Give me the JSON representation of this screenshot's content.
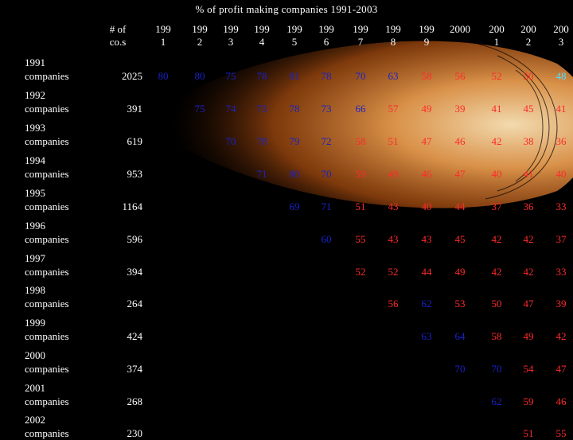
{
  "title": "% of profit making companies 1991-2003",
  "header": {
    "count_col": [
      "# of",
      "co.s"
    ],
    "years": [
      [
        "199",
        "1"
      ],
      [
        "199",
        "2"
      ],
      [
        "199",
        "3"
      ],
      [
        "199",
        "4"
      ],
      [
        "199",
        "5"
      ],
      [
        "199",
        "6"
      ],
      [
        "199",
        "7"
      ],
      [
        "199",
        "8"
      ],
      [
        "199",
        "9"
      ],
      [
        "2000",
        ""
      ],
      [
        "200",
        "1"
      ],
      [
        "200",
        "2"
      ],
      [
        "200",
        "3"
      ]
    ]
  },
  "rows": [
    {
      "label": [
        "1991",
        "companies"
      ],
      "count": "2025",
      "start": 0,
      "values": [
        "80",
        "80",
        "75",
        "78",
        "81",
        "78",
        "70",
        "63",
        "58",
        "56",
        "52",
        "50",
        "48"
      ]
    },
    {
      "label": [
        "1992",
        "companies"
      ],
      "count": "391",
      "start": 1,
      "values": [
        "75",
        "74",
        "73",
        "78",
        "73",
        "66",
        "57",
        "49",
        "39",
        "41",
        "45",
        "41"
      ]
    },
    {
      "label": [
        "1993",
        "companies"
      ],
      "count": "619",
      "start": 2,
      "values": [
        "70",
        "78",
        "79",
        "72",
        "58",
        "51",
        "47",
        "46",
        "42",
        "38",
        "36"
      ]
    },
    {
      "label": [
        "1994",
        "companies"
      ],
      "count": "953",
      "start": 3,
      "values": [
        "71",
        "80",
        "70",
        "59",
        "49",
        "46",
        "47",
        "40",
        "41",
        "40"
      ]
    },
    {
      "label": [
        "1995",
        "companies"
      ],
      "count": "1164",
      "start": 4,
      "values": [
        "69",
        "71",
        "51",
        "43",
        "40",
        "44",
        "37",
        "36",
        "33"
      ]
    },
    {
      "label": [
        "1996",
        "companies"
      ],
      "count": "596",
      "start": 5,
      "values": [
        "60",
        "55",
        "43",
        "43",
        "45",
        "42",
        "42",
        "37"
      ]
    },
    {
      "label": [
        "1997",
        "companies"
      ],
      "count": "394",
      "start": 6,
      "values": [
        "52",
        "52",
        "44",
        "49",
        "42",
        "42",
        "33"
      ]
    },
    {
      "label": [
        "1998",
        "companies"
      ],
      "count": "264",
      "start": 7,
      "values": [
        "56",
        "62",
        "53",
        "50",
        "47",
        "39"
      ]
    },
    {
      "label": [
        "1999",
        "companies"
      ],
      "count": "424",
      "start": 8,
      "values": [
        "63",
        "64",
        "58",
        "49",
        "42"
      ]
    },
    {
      "label": [
        "2000",
        "companies"
      ],
      "count": "374",
      "start": 9,
      "values": [
        "70",
        "70",
        "54",
        "47"
      ]
    },
    {
      "label": [
        "2001",
        "companies"
      ],
      "count": "268",
      "start": 10,
      "values": [
        "62",
        "59",
        "46"
      ]
    },
    {
      "label": [
        "2002",
        "companies"
      ],
      "count": "230",
      "start": 11,
      "values": [
        "51",
        "55"
      ]
    }
  ],
  "colors": {
    "background": "#000000",
    "text": "#ffffff",
    "blue_value": "#1a22c8",
    "red_value": "#ff2a2a",
    "cyan_value": "#55ddff",
    "glow_core": "#ffd9a0",
    "glow_mid": "#c86a1a",
    "glow_outer": "#5a2a08"
  }
}
